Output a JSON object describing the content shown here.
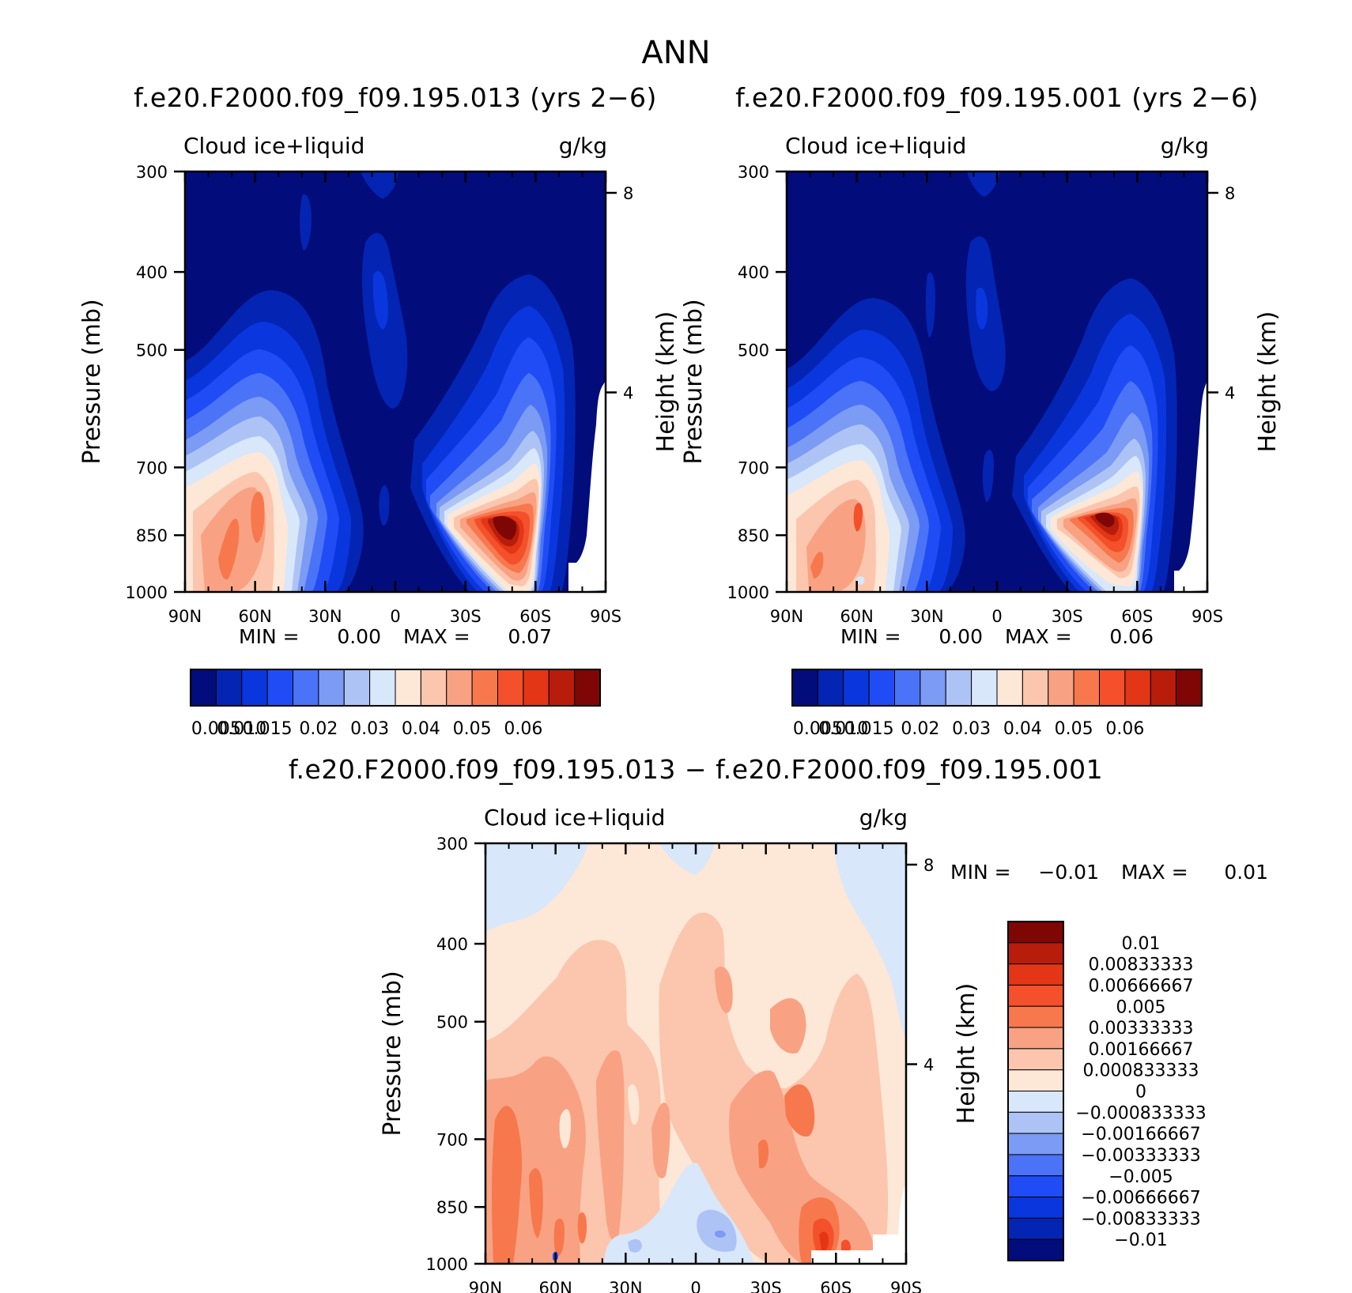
{
  "figure": {
    "title": "ANN"
  },
  "colors": {
    "abs_palette": [
      "#020c7a",
      "#0424b3",
      "#0a37dd",
      "#1f4cf5",
      "#4a73f7",
      "#7b9bf4",
      "#aec3f5",
      "#d8e7fa",
      "#fde7d7",
      "#fbc6ad",
      "#f8a283",
      "#f7784d",
      "#f3502b",
      "#e23616",
      "#b81d0b",
      "#7e0604"
    ],
    "diff_palette": [
      "#020c7a",
      "#0424b3",
      "#0a37dd",
      "#1f4cf5",
      "#4a73f7",
      "#7b9bf4",
      "#aec3f5",
      "#d8e7fa",
      "#fde7d7",
      "#fbc6ad",
      "#f8a283",
      "#f7784d",
      "#f3502b",
      "#e23616",
      "#b81d0b",
      "#7e0604"
    ]
  },
  "chart_data": [
    {
      "type": "heatmap",
      "title": "f.e20.F2000.f09_f09.195.013 (yrs 2−6)",
      "variable_label": "Cloud ice+liquid",
      "units_label": "g/kg",
      "ylabel": "Pressure (mb)",
      "y2label": "Height (km)",
      "xticks": [
        "90N",
        "60N",
        "30N",
        "0",
        "30S",
        "60S",
        "90S"
      ],
      "yticks": [
        "300",
        "400",
        "500",
        "700",
        "850",
        "1000"
      ],
      "y2ticks": [
        "8",
        "4"
      ],
      "min_label": "MIN =",
      "min_value": "0.00",
      "max_label": "MAX =",
      "max_value": "0.07",
      "colorbar_labels": [
        "0.005",
        "0.010",
        "0.015",
        "0.02",
        "0.03",
        "0.04",
        "0.05",
        "0.06"
      ],
      "features": [
        {
          "lat": 72,
          "p": 870,
          "value": 0.035
        },
        {
          "lat": 62,
          "p": 860,
          "value": 0.038
        },
        {
          "lat": 52,
          "p": 930,
          "value": 0.028
        },
        {
          "lat": -52,
          "p": 850,
          "value": 0.07
        },
        {
          "lat": 0,
          "p": 550,
          "value": 0.012
        }
      ]
    },
    {
      "type": "heatmap",
      "title": "f.e20.F2000.f09_f09.195.001 (yrs 2−6)",
      "variable_label": "Cloud ice+liquid",
      "units_label": "g/kg",
      "ylabel": "Pressure (mb)",
      "y2label": "Height (km)",
      "xticks": [
        "90N",
        "60N",
        "30N",
        "0",
        "30S",
        "60S",
        "90S"
      ],
      "yticks": [
        "300",
        "400",
        "500",
        "700",
        "850",
        "1000"
      ],
      "y2ticks": [
        "8",
        "4"
      ],
      "min_label": "MIN =",
      "min_value": "0.00",
      "max_label": "MAX =",
      "max_value": "0.06",
      "colorbar_labels": [
        "0.005",
        "0.010",
        "0.015",
        "0.02",
        "0.03",
        "0.04",
        "0.05",
        "0.06"
      ],
      "features": [
        {
          "lat": 72,
          "p": 880,
          "value": 0.032
        },
        {
          "lat": 60,
          "p": 860,
          "value": 0.035
        },
        {
          "lat": -50,
          "p": 850,
          "value": 0.062
        },
        {
          "lat": 0,
          "p": 560,
          "value": 0.01
        }
      ]
    },
    {
      "type": "heatmap",
      "title": "f.e20.F2000.f09_f09.195.013 − f.e20.F2000.f09_f09.195.001",
      "variable_label": "Cloud ice+liquid",
      "units_label": "g/kg",
      "ylabel": "Pressure (mb)",
      "y2label": "Height (km)",
      "xticks": [
        "90N",
        "60N",
        "30N",
        "0",
        "30S",
        "60S",
        "90S"
      ],
      "yticks": [
        "300",
        "400",
        "500",
        "700",
        "850",
        "1000"
      ],
      "y2ticks": [
        "8",
        "4"
      ],
      "min_label": "MIN =",
      "min_value": "−0.01",
      "max_label": "MAX =",
      "max_value": "0.01",
      "colorbar_labels": [
        "0.01",
        "0.00833333",
        "0.00666667",
        "0.005",
        "0.00333333",
        "0.00166667",
        "0.000833333",
        "0",
        "−0.000833333",
        "−0.00166667",
        "−0.00333333",
        "−0.005",
        "−0.00666667",
        "−0.00833333",
        "−0.01"
      ],
      "features": [
        {
          "lat": -57,
          "p": 950,
          "value": 0.007
        },
        {
          "lat": -35,
          "p": 770,
          "value": 0.004
        },
        {
          "lat": 80,
          "p": 850,
          "value": 0.004
        },
        {
          "lat": 5,
          "p": 930,
          "value": -0.002
        }
      ]
    }
  ]
}
